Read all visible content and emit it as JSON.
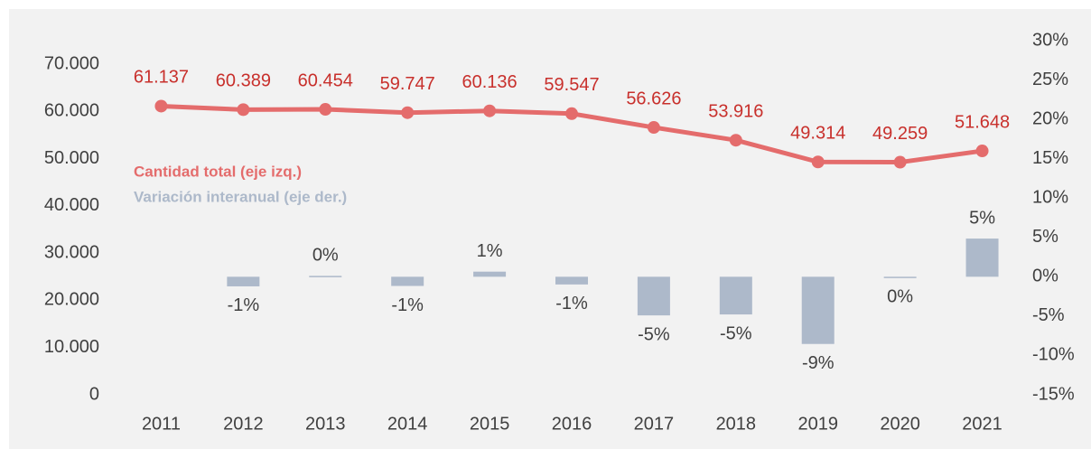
{
  "chart_data": {
    "type": "combo",
    "categories": [
      "2011",
      "2012",
      "2013",
      "2014",
      "2015",
      "2016",
      "2017",
      "2018",
      "2019",
      "2020",
      "2021"
    ],
    "series": [
      {
        "name": "Cantidad total (eje izq.)",
        "type": "line",
        "axis": "y",
        "color": "#e46c6c",
        "label_color": "#c8302c",
        "values": [
          61137,
          60389,
          60454,
          59747,
          60136,
          59547,
          56626,
          53916,
          49314,
          49259,
          51648
        ],
        "value_labels": [
          "61.137",
          "60.389",
          "60.454",
          "59.747",
          "60.136",
          "59.547",
          "56.626",
          "53.916",
          "49.314",
          "49.259",
          "51.648"
        ]
      },
      {
        "name": "Variación interanual (eje der.)",
        "type": "bar",
        "axis": "y2",
        "color": "#adb9ca",
        "label_color": "#404040",
        "values": [
          null,
          -1.22,
          0.11,
          -1.17,
          0.65,
          -0.98,
          -4.91,
          -4.79,
          -8.54,
          -0.11,
          4.85
        ],
        "value_labels": [
          null,
          "-1%",
          "0%",
          "-1%",
          "1%",
          "-1%",
          "-5%",
          "-5%",
          "-9%",
          "0%",
          "5%"
        ]
      }
    ],
    "ylim": [
      0,
      75000
    ],
    "yticks": [
      {
        "value": 0,
        "label": "0"
      },
      {
        "value": 10000,
        "label": "10.000"
      },
      {
        "value": 20000,
        "label": "20.000"
      },
      {
        "value": 30000,
        "label": "30.000"
      },
      {
        "value": 40000,
        "label": "40.000"
      },
      {
        "value": 50000,
        "label": "50.000"
      },
      {
        "value": 60000,
        "label": "60.000"
      },
      {
        "value": 70000,
        "label": "70.000"
      }
    ],
    "y2lim": [
      -15,
      30
    ],
    "y2ticks": [
      {
        "value": -15,
        "label": "-15%"
      },
      {
        "value": -10,
        "label": "-10%"
      },
      {
        "value": -5,
        "label": "-5%"
      },
      {
        "value": 0,
        "label": "0%"
      },
      {
        "value": 5,
        "label": "5%"
      },
      {
        "value": 10,
        "label": "10%"
      },
      {
        "value": 15,
        "label": "15%"
      },
      {
        "value": 20,
        "label": "20%"
      },
      {
        "value": 25,
        "label": "25%"
      },
      {
        "value": 30,
        "label": "30%"
      }
    ]
  }
}
